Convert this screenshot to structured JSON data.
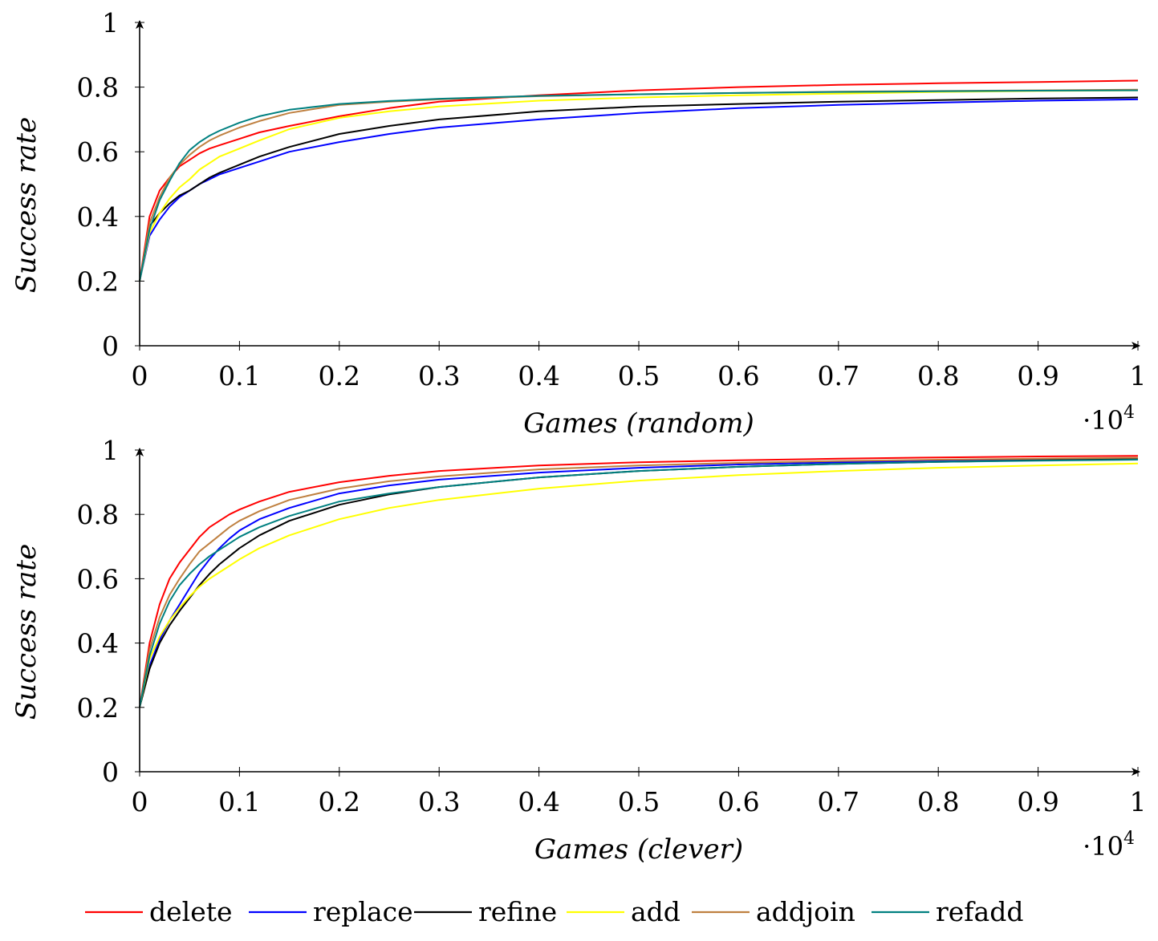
{
  "chart_data": [
    {
      "type": "line",
      "xlabel": "Games (random)",
      "ylabel": "Success rate",
      "x_scale_label": "·10",
      "x_scale_exponent": "4",
      "xlim": [
        0,
        1
      ],
      "ylim": [
        0,
        1
      ],
      "x_ticks": [
        "0",
        "0.1",
        "0.2",
        "0.3",
        "0.4",
        "0.5",
        "0.6",
        "0.7",
        "0.8",
        "0.9",
        "1"
      ],
      "y_ticks": [
        "0",
        "0.2",
        "0.4",
        "0.6",
        "0.8",
        "1"
      ],
      "x_tick_values": [
        0,
        0.1,
        0.2,
        0.3,
        0.4,
        0.5,
        0.6,
        0.7,
        0.8,
        0.9,
        1
      ],
      "y_tick_values": [
        0,
        0.2,
        0.4,
        0.6,
        0.8,
        1
      ],
      "grid": false,
      "x": [
        0,
        0.01,
        0.02,
        0.03,
        0.04,
        0.05,
        0.06,
        0.07,
        0.08,
        0.1,
        0.12,
        0.15,
        0.2,
        0.25,
        0.3,
        0.4,
        0.5,
        0.6,
        0.7,
        0.8,
        0.9,
        1.0
      ],
      "series": [
        {
          "name": "delete",
          "color": "#ff0000",
          "values": [
            0.2,
            0.4,
            0.48,
            0.52,
            0.555,
            0.575,
            0.595,
            0.61,
            0.62,
            0.64,
            0.66,
            0.68,
            0.71,
            0.735,
            0.755,
            0.775,
            0.79,
            0.8,
            0.807,
            0.812,
            0.816,
            0.82
          ]
        },
        {
          "name": "replace",
          "color": "#0000ff",
          "values": [
            0.2,
            0.34,
            0.39,
            0.43,
            0.46,
            0.48,
            0.5,
            0.515,
            0.53,
            0.55,
            0.57,
            0.6,
            0.63,
            0.655,
            0.675,
            0.7,
            0.72,
            0.735,
            0.745,
            0.752,
            0.758,
            0.762
          ]
        },
        {
          "name": "refine",
          "color": "#000000",
          "values": [
            0.2,
            0.37,
            0.41,
            0.44,
            0.465,
            0.48,
            0.5,
            0.52,
            0.535,
            0.56,
            0.585,
            0.615,
            0.655,
            0.68,
            0.7,
            0.725,
            0.74,
            0.748,
            0.755,
            0.76,
            0.765,
            0.768
          ]
        },
        {
          "name": "add",
          "color": "#ffff00",
          "values": [
            0.2,
            0.35,
            0.41,
            0.455,
            0.49,
            0.515,
            0.545,
            0.565,
            0.585,
            0.61,
            0.635,
            0.67,
            0.705,
            0.725,
            0.74,
            0.758,
            0.768,
            0.775,
            0.78,
            0.785,
            0.788,
            0.79
          ]
        },
        {
          "name": "addjoin",
          "color": "#bf8040",
          "values": [
            0.2,
            0.38,
            0.46,
            0.52,
            0.56,
            0.59,
            0.615,
            0.635,
            0.65,
            0.675,
            0.695,
            0.72,
            0.745,
            0.755,
            0.762,
            0.772,
            0.778,
            0.782,
            0.786,
            0.788,
            0.79,
            0.792
          ]
        },
        {
          "name": "refadd",
          "color": "#008080",
          "values": [
            0.2,
            0.36,
            0.45,
            0.51,
            0.565,
            0.605,
            0.63,
            0.65,
            0.665,
            0.69,
            0.71,
            0.73,
            0.748,
            0.757,
            0.764,
            0.773,
            0.778,
            0.782,
            0.785,
            0.787,
            0.789,
            0.79
          ]
        }
      ]
    },
    {
      "type": "line",
      "xlabel": "Games (clever)",
      "ylabel": "Success rate",
      "x_scale_label": "·10",
      "x_scale_exponent": "4",
      "xlim": [
        0,
        1
      ],
      "ylim": [
        0,
        1
      ],
      "x_ticks": [
        "0",
        "0.1",
        "0.2",
        "0.3",
        "0.4",
        "0.5",
        "0.6",
        "0.7",
        "0.8",
        "0.9",
        "1"
      ],
      "y_ticks": [
        "0",
        "0.2",
        "0.4",
        "0.6",
        "0.8",
        "1"
      ],
      "x_tick_values": [
        0,
        0.1,
        0.2,
        0.3,
        0.4,
        0.5,
        0.6,
        0.7,
        0.8,
        0.9,
        1
      ],
      "y_tick_values": [
        0,
        0.2,
        0.4,
        0.6,
        0.8,
        1
      ],
      "grid": false,
      "x": [
        0,
        0.01,
        0.02,
        0.03,
        0.04,
        0.05,
        0.06,
        0.07,
        0.08,
        0.09,
        0.1,
        0.12,
        0.15,
        0.2,
        0.25,
        0.3,
        0.4,
        0.5,
        0.6,
        0.7,
        0.8,
        0.9,
        1.0
      ],
      "series": [
        {
          "name": "delete",
          "color": "#ff0000",
          "values": [
            0.2,
            0.4,
            0.52,
            0.6,
            0.65,
            0.69,
            0.73,
            0.76,
            0.78,
            0.8,
            0.815,
            0.84,
            0.87,
            0.9,
            0.92,
            0.935,
            0.952,
            0.962,
            0.968,
            0.973,
            0.977,
            0.98,
            0.982
          ]
        },
        {
          "name": "replace",
          "color": "#0000ff",
          "values": [
            0.2,
            0.33,
            0.41,
            0.47,
            0.52,
            0.57,
            0.62,
            0.66,
            0.695,
            0.725,
            0.75,
            0.785,
            0.82,
            0.865,
            0.89,
            0.908,
            0.93,
            0.945,
            0.955,
            0.962,
            0.967,
            0.971,
            0.974
          ]
        },
        {
          "name": "refine",
          "color": "#000000",
          "values": [
            0.2,
            0.32,
            0.4,
            0.455,
            0.5,
            0.54,
            0.58,
            0.615,
            0.645,
            0.67,
            0.695,
            0.735,
            0.78,
            0.83,
            0.862,
            0.885,
            0.915,
            0.935,
            0.948,
            0.957,
            0.963,
            0.968,
            0.972
          ]
        },
        {
          "name": "add",
          "color": "#ffff00",
          "values": [
            0.2,
            0.35,
            0.42,
            0.47,
            0.51,
            0.545,
            0.575,
            0.6,
            0.62,
            0.64,
            0.66,
            0.695,
            0.735,
            0.785,
            0.82,
            0.845,
            0.88,
            0.905,
            0.922,
            0.935,
            0.945,
            0.952,
            0.958
          ]
        },
        {
          "name": "addjoin",
          "color": "#bf8040",
          "values": [
            0.2,
            0.38,
            0.48,
            0.55,
            0.6,
            0.645,
            0.685,
            0.71,
            0.735,
            0.76,
            0.78,
            0.81,
            0.845,
            0.88,
            0.903,
            0.918,
            0.94,
            0.952,
            0.96,
            0.966,
            0.97,
            0.973,
            0.976
          ]
        },
        {
          "name": "refadd",
          "color": "#008080",
          "values": [
            0.2,
            0.36,
            0.46,
            0.53,
            0.58,
            0.615,
            0.645,
            0.67,
            0.69,
            0.71,
            0.73,
            0.76,
            0.795,
            0.84,
            0.865,
            0.885,
            0.915,
            0.935,
            0.948,
            0.957,
            0.963,
            0.967,
            0.97
          ]
        }
      ]
    }
  ],
  "legend": {
    "placement": "bottom",
    "items": [
      {
        "name": "delete",
        "color": "#ff0000"
      },
      {
        "name": "replace",
        "color": "#0000ff"
      },
      {
        "name": "refine",
        "color": "#000000"
      },
      {
        "name": "add",
        "color": "#ffff00"
      },
      {
        "name": "addjoin",
        "color": "#bf8040"
      },
      {
        "name": "refadd",
        "color": "#008080"
      }
    ]
  }
}
